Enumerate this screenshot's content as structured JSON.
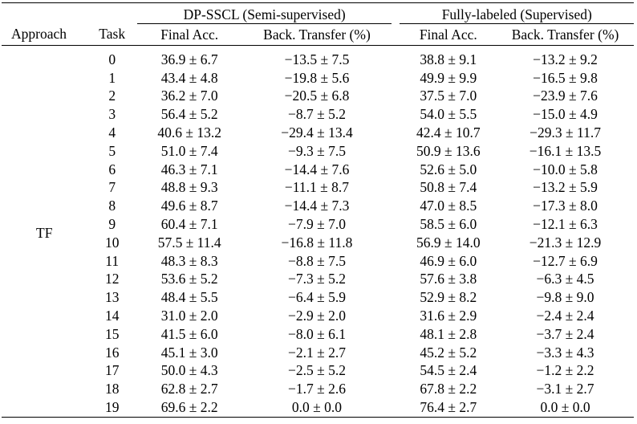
{
  "table": {
    "group_headers": [
      "DP-SSCL (Semi-supervised)",
      "Fully-labeled (Supervised)"
    ],
    "columns": [
      "Approach",
      "Task",
      "Final Acc.",
      "Back. Transfer (%)",
      "Final Acc.",
      "Back. Transfer (%)"
    ],
    "approach": "TF",
    "rows": [
      {
        "task": "0",
        "dp_final": "36.9 ± 6.7",
        "dp_back": "−13.5 ± 7.5",
        "fl_final": "38.8 ± 9.1",
        "fl_back": "−13.2 ± 9.2"
      },
      {
        "task": "1",
        "dp_final": "43.4 ± 4.8",
        "dp_back": "−19.8 ± 5.6",
        "fl_final": "49.9 ± 9.9",
        "fl_back": "−16.5 ± 9.8"
      },
      {
        "task": "2",
        "dp_final": "36.2 ± 7.0",
        "dp_back": "−20.5 ± 6.8",
        "fl_final": "37.5 ± 7.0",
        "fl_back": "−23.9 ± 7.6"
      },
      {
        "task": "3",
        "dp_final": "56.4 ± 5.2",
        "dp_back": "−8.7 ± 5.2",
        "fl_final": "54.0 ± 5.5",
        "fl_back": "−15.0 ± 4.9"
      },
      {
        "task": "4",
        "dp_final": "40.6 ± 13.2",
        "dp_back": "−29.4 ± 13.4",
        "fl_final": "42.4 ± 10.7",
        "fl_back": "−29.3 ± 11.7"
      },
      {
        "task": "5",
        "dp_final": "51.0 ± 7.4",
        "dp_back": "−9.3 ± 7.5",
        "fl_final": "50.9 ± 13.6",
        "fl_back": "−16.1 ± 13.5"
      },
      {
        "task": "6",
        "dp_final": "46.3 ± 7.1",
        "dp_back": "−14.4 ± 7.6",
        "fl_final": "52.6 ± 5.0",
        "fl_back": "−10.0 ± 5.8"
      },
      {
        "task": "7",
        "dp_final": "48.8 ± 9.3",
        "dp_back": "−11.1 ± 8.7",
        "fl_final": "50.8 ± 7.4",
        "fl_back": "−13.2 ± 5.9"
      },
      {
        "task": "8",
        "dp_final": "49.6 ± 8.7",
        "dp_back": "−14.4 ± 7.3",
        "fl_final": "47.0 ± 8.5",
        "fl_back": "−17.3 ± 8.0"
      },
      {
        "task": "9",
        "dp_final": "60.4 ± 7.1",
        "dp_back": "−7.9 ± 7.0",
        "fl_final": "58.5 ± 6.0",
        "fl_back": "−12.1 ± 6.3"
      },
      {
        "task": "10",
        "dp_final": "57.5 ± 11.4",
        "dp_back": "−16.8 ± 11.8",
        "fl_final": "56.9 ± 14.0",
        "fl_back": "−21.3 ± 12.9"
      },
      {
        "task": "11",
        "dp_final": "48.3 ± 8.3",
        "dp_back": "−8.8 ± 7.5",
        "fl_final": "46.9 ± 6.0",
        "fl_back": "−12.7 ± 6.9"
      },
      {
        "task": "12",
        "dp_final": "53.6 ± 5.2",
        "dp_back": "−7.3 ± 5.2",
        "fl_final": "57.6 ± 3.8",
        "fl_back": "−6.3 ± 4.5"
      },
      {
        "task": "13",
        "dp_final": "48.4 ± 5.5",
        "dp_back": "−6.4 ± 5.9",
        "fl_final": "52.9 ± 8.2",
        "fl_back": "−9.8 ± 9.0"
      },
      {
        "task": "14",
        "dp_final": "31.0 ± 2.0",
        "dp_back": "−2.9 ± 2.0",
        "fl_final": "31.6 ± 2.9",
        "fl_back": "−2.4 ± 2.4"
      },
      {
        "task": "15",
        "dp_final": "41.5 ± 6.0",
        "dp_back": "−8.0 ± 6.1",
        "fl_final": "48.1 ± 2.8",
        "fl_back": "−3.7 ± 2.4"
      },
      {
        "task": "16",
        "dp_final": "45.1 ± 3.0",
        "dp_back": "−2.1 ± 2.7",
        "fl_final": "45.2 ± 5.2",
        "fl_back": "−3.3 ± 4.3"
      },
      {
        "task": "17",
        "dp_final": "50.0 ± 4.3",
        "dp_back": "−2.5 ± 5.2",
        "fl_final": "54.5 ± 2.4",
        "fl_back": "−1.2 ± 2.2"
      },
      {
        "task": "18",
        "dp_final": "62.8 ± 2.7",
        "dp_back": "−1.7 ± 2.6",
        "fl_final": "67.8 ± 2.2",
        "fl_back": "−3.1 ± 2.7"
      },
      {
        "task": "19",
        "dp_final": "69.6 ± 2.2",
        "dp_back": "0.0 ± 0.0",
        "fl_final": "76.4 ± 2.7",
        "fl_back": "0.0 ± 0.0"
      }
    ]
  }
}
